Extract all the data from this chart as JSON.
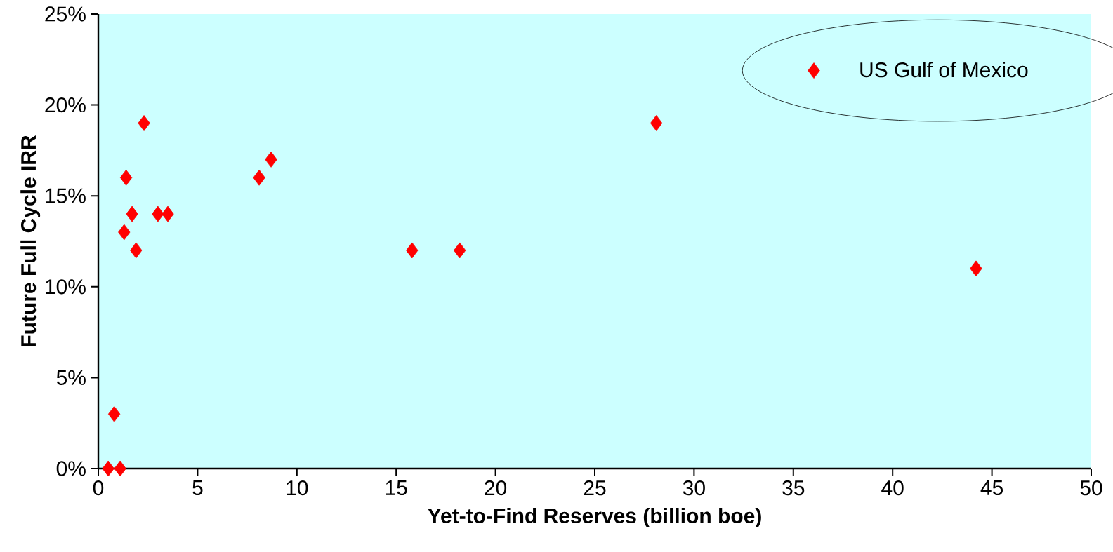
{
  "chart_data": {
    "type": "scatter",
    "xlabel": "Yet-to-Find Reserves (billion boe)",
    "ylabel": "Future Full Cycle IRR",
    "x": [
      0.5,
      1.1,
      0.8,
      1.3,
      1.4,
      1.7,
      1.9,
      2.3,
      3.0,
      3.5,
      8.1,
      8.7,
      15.8,
      18.2,
      28.1,
      44.2
    ],
    "series": [
      {
        "name": "US Gulf of Mexico",
        "color": "#ff0000",
        "values": [
          0,
          0,
          3,
          13,
          16,
          14,
          12,
          19,
          14,
          14,
          16,
          17,
          12,
          12,
          19,
          11
        ]
      }
    ],
    "xlim": [
      0,
      50
    ],
    "ylim": [
      0,
      25
    ],
    "xticks": [
      0,
      5,
      10,
      15,
      20,
      25,
      30,
      35,
      40,
      45,
      50
    ],
    "yticks": [
      {
        "value": 0,
        "label": "0%"
      },
      {
        "value": 5,
        "label": "5%"
      },
      {
        "value": 10,
        "label": "10%"
      },
      {
        "value": 15,
        "label": "15%"
      },
      {
        "value": 20,
        "label": "20%"
      },
      {
        "value": 25,
        "label": "25%"
      }
    ],
    "legend": "top right",
    "marker": "diamond"
  }
}
